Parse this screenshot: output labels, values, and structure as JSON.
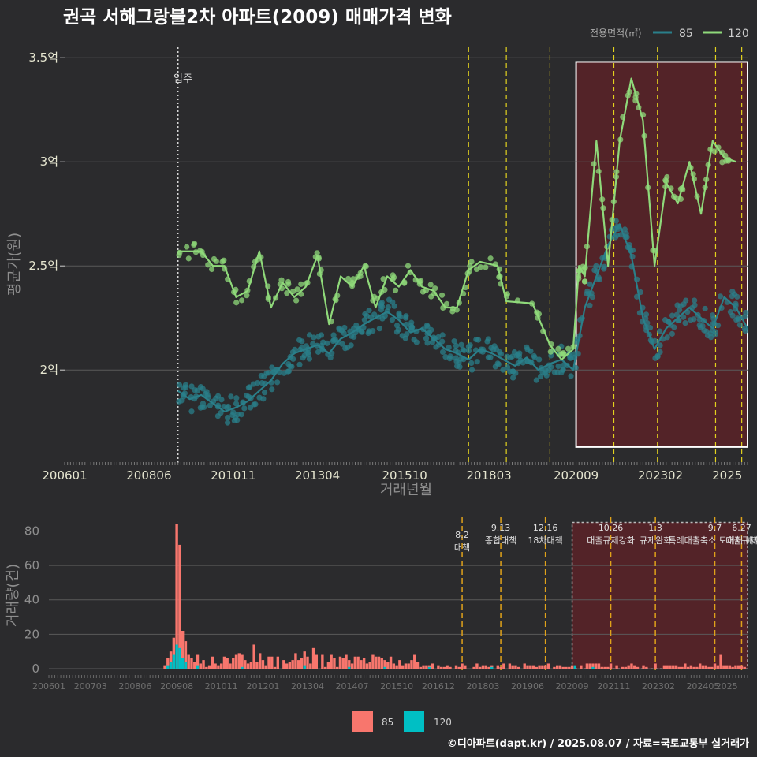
{
  "title": "권곡 서해그랑블2차 아파트(2009) 매매가격 변화",
  "footer": "©디아파트(dapt.kr) / 2025.08.07 / 자료=국토교통부 실거래가",
  "legend_top": {
    "title": "전용면적(㎡)",
    "items": [
      {
        "name": "85",
        "color": "#2a7f8a"
      },
      {
        "name": "120",
        "color": "#8fd97a"
      }
    ]
  },
  "legend_bottom": {
    "items": [
      {
        "name": "85",
        "color": "#f8766d"
      },
      {
        "name": "120",
        "color": "#00bfc4"
      }
    ]
  },
  "colors": {
    "bg": "#2b2b2d",
    "grid": "#5a5a5a",
    "vline": "#e3d21e",
    "vline2": "#e0a21a",
    "highlight": "#5a2228",
    "box": "#ffffff"
  },
  "chart_data": [
    {
      "type": "line",
      "title": "권곡 서해그랑블2차 아파트(2009) 매매가격 변화",
      "xlabel": "거래년월",
      "ylabel": "평균가(원)",
      "x_ticks": [
        "200601",
        "200806",
        "201011",
        "201304",
        "201510",
        "201803",
        "202009",
        "202302",
        "2025"
      ],
      "y_ticks": [
        {
          "label": "2억",
          "value": 2.0
        },
        {
          "label": "2.5억",
          "value": 2.5
        },
        {
          "label": "3억",
          "value": 3.0
        },
        {
          "label": "3.5억",
          "value": 3.5
        }
      ],
      "ylim": [
        1.55,
        3.55
      ],
      "xlim": [
        "2006-01",
        "2025-08"
      ],
      "grid": true,
      "legend": "top-right",
      "annotation": {
        "label": "입주",
        "x": "2009-04"
      },
      "policy_lines": [
        "2017-08",
        "2018-09",
        "2019-12",
        "2021-10",
        "2023-01",
        "2024-09",
        "2025-06"
      ],
      "highlight_range": [
        "2020-09",
        "2025-08"
      ],
      "series": [
        {
          "name": "85",
          "points": [
            [
              "2009-04",
              1.9
            ],
            [
              "2009-08",
              1.86
            ],
            [
              "2009-12",
              1.88
            ],
            [
              "2010-04",
              1.84
            ],
            [
              "2010-08",
              1.8
            ],
            [
              "2010-12",
              1.82
            ],
            [
              "2011-04",
              1.85
            ],
            [
              "2011-08",
              1.9
            ],
            [
              "2011-12",
              1.95
            ],
            [
              "2012-04",
              2.03
            ],
            [
              "2012-08",
              2.08
            ],
            [
              "2012-12",
              2.1
            ],
            [
              "2013-04",
              2.12
            ],
            [
              "2013-08",
              2.08
            ],
            [
              "2013-12",
              2.15
            ],
            [
              "2014-04",
              2.18
            ],
            [
              "2014-08",
              2.22
            ],
            [
              "2014-12",
              2.25
            ],
            [
              "2015-04",
              2.28
            ],
            [
              "2015-08",
              2.24
            ],
            [
              "2015-12",
              2.18
            ],
            [
              "2016-04",
              2.2
            ],
            [
              "2016-08",
              2.15
            ],
            [
              "2016-12",
              2.1
            ],
            [
              "2017-04",
              2.08
            ],
            [
              "2017-08",
              2.05
            ],
            [
              "2017-12",
              2.1
            ],
            [
              "2018-04",
              2.08
            ],
            [
              "2018-08",
              2.05
            ],
            [
              "2018-12",
              2.02
            ],
            [
              "2019-04",
              2.06
            ],
            [
              "2019-08",
              2.0
            ],
            [
              "2019-12",
              2.03
            ],
            [
              "2020-04",
              2.05
            ],
            [
              "2020-08",
              2.0
            ],
            [
              "2020-12",
              2.3
            ],
            [
              "2021-04",
              2.45
            ],
            [
              "2021-08",
              2.6
            ],
            [
              "2021-12",
              2.7
            ],
            [
              "2022-04",
              2.55
            ],
            [
              "2022-08",
              2.25
            ],
            [
              "2022-12",
              2.1
            ],
            [
              "2023-04",
              2.2
            ],
            [
              "2023-08",
              2.25
            ],
            [
              "2023-12",
              2.3
            ],
            [
              "2024-04",
              2.25
            ],
            [
              "2024-08",
              2.2
            ],
            [
              "2024-12",
              2.35
            ],
            [
              "2025-04",
              2.3
            ],
            [
              "2025-08",
              2.2
            ]
          ]
        },
        {
          "name": "120",
          "points": [
            [
              "2009-04",
              2.57
            ],
            [
              "2009-08",
              2.57
            ],
            [
              "2009-12",
              2.57
            ],
            [
              "2010-04",
              2.5
            ],
            [
              "2010-08",
              2.5
            ],
            [
              "2010-12",
              2.35
            ],
            [
              "2011-04",
              2.38
            ],
            [
              "2011-08",
              2.57
            ],
            [
              "2011-12",
              2.3
            ],
            [
              "2012-04",
              2.42
            ],
            [
              "2012-08",
              2.35
            ],
            [
              "2012-12",
              2.4
            ],
            [
              "2013-04",
              2.55
            ],
            [
              "2013-08",
              2.22
            ],
            [
              "2013-12",
              2.45
            ],
            [
              "2014-04",
              2.4
            ],
            [
              "2014-08",
              2.5
            ],
            [
              "2014-12",
              2.3
            ],
            [
              "2015-04",
              2.45
            ],
            [
              "2015-08",
              2.4
            ],
            [
              "2015-12",
              2.48
            ],
            [
              "2016-04",
              2.4
            ],
            [
              "2016-08",
              2.38
            ],
            [
              "2016-12",
              2.3
            ],
            [
              "2017-04",
              2.3
            ],
            [
              "2017-08",
              2.48
            ],
            [
              "2017-12",
              2.52
            ],
            [
              "2018-06",
              2.5
            ],
            [
              "2018-09",
              2.33
            ],
            [
              "2019-06",
              2.32
            ],
            [
              "2019-12",
              2.12
            ],
            [
              "2020-04",
              2.05
            ],
            [
              "2020-08",
              2.1
            ],
            [
              "2020-10",
              2.5
            ],
            [
              "2020-12",
              2.45
            ],
            [
              "2021-04",
              3.1
            ],
            [
              "2021-08",
              2.5
            ],
            [
              "2021-12",
              3.1
            ],
            [
              "2022-04",
              3.4
            ],
            [
              "2022-08",
              3.2
            ],
            [
              "2022-12",
              2.5
            ],
            [
              "2023-04",
              2.9
            ],
            [
              "2023-08",
              2.8
            ],
            [
              "2023-12",
              3.0
            ],
            [
              "2024-04",
              2.75
            ],
            [
              "2024-08",
              3.1
            ],
            [
              "2024-12",
              3.02
            ],
            [
              "2025-04",
              3.0
            ]
          ]
        }
      ]
    },
    {
      "type": "bar",
      "ylabel": "거래량(건)",
      "x_ticks": [
        "200601",
        "200703",
        "200806",
        "200908",
        "201011",
        "201201",
        "201304",
        "201407",
        "201510",
        "201612",
        "201803",
        "201906",
        "202009",
        "202111",
        "202302",
        "202405",
        "2025"
      ],
      "y_ticks": [
        0,
        20,
        40,
        60,
        80
      ],
      "ylim": [
        0,
        88
      ],
      "grid": true,
      "legend": "bottom",
      "stacked": true,
      "policy_annotations": [
        {
          "date": "2017-08",
          "label": "8.2 대책"
        },
        {
          "date": "2018-09",
          "label": "9.13 종합대책"
        },
        {
          "date": "2019-12",
          "label": "12.16 18차대책"
        },
        {
          "date": "2021-10",
          "label": "10.26 대출규제강화"
        },
        {
          "date": "2023-01",
          "label": "1.3 규제완화"
        },
        {
          "date": "2024-09",
          "label": "9.7 특례대출축소 토허제 해제"
        },
        {
          "date": "2025-06",
          "label": "6.27 대출규제"
        }
      ],
      "series": [
        {
          "name": "85",
          "values_by_month": [
            [
              "2009-04",
              2
            ],
            [
              "2009-05",
              6
            ],
            [
              "2009-06",
              10
            ],
            [
              "2009-07",
              18
            ],
            [
              "2009-08",
              84
            ],
            [
              "2009-09",
              72
            ],
            [
              "2009-10",
              22
            ],
            [
              "2009-11",
              16
            ],
            [
              "2009-12",
              8
            ],
            [
              "2010-02",
              4
            ],
            [
              "2010-05",
              5
            ],
            [
              "2010-09",
              3
            ],
            [
              "2011-01",
              6
            ],
            [
              "2011-06",
              8
            ],
            [
              "2011-10",
              14
            ],
            [
              "2011-12",
              9
            ],
            [
              "2012-04",
              7
            ],
            [
              "2012-08",
              5
            ],
            [
              "2012-12",
              9
            ],
            [
              "2013-03",
              10
            ],
            [
              "2013-06",
              12
            ],
            [
              "2013-09",
              8
            ],
            [
              "2014-01",
              6
            ],
            [
              "2014-06",
              5
            ],
            [
              "2015-01",
              4
            ],
            [
              "2015-06",
              5
            ],
            [
              "2016-01",
              3
            ],
            [
              "2016-09",
              2
            ],
            [
              "2017-06",
              2
            ],
            [
              "2018-06",
              2
            ],
            [
              "2019-03",
              1
            ],
            [
              "2020-12",
              2
            ],
            [
              "2021-05",
              3
            ],
            [
              "2022-03",
              1
            ],
            [
              "2023-05",
              2
            ],
            [
              "2024-06",
              2
            ],
            [
              "2024-11",
              8
            ],
            [
              "2025-05",
              2
            ]
          ]
        },
        {
          "name": "120",
          "values_by_month": [
            [
              "2009-05",
              2
            ],
            [
              "2009-06",
              4
            ],
            [
              "2009-07",
              8
            ],
            [
              "2009-08",
              14
            ],
            [
              "2009-09",
              12
            ],
            [
              "2009-10",
              6
            ],
            [
              "2009-11",
              4
            ],
            [
              "2010-03",
              2
            ],
            [
              "2011-06",
              1
            ],
            [
              "2013-03",
              2
            ],
            [
              "2014-06",
              1
            ],
            [
              "2015-06",
              1
            ],
            [
              "2016-09",
              1
            ],
            [
              "2018-06",
              1
            ],
            [
              "2020-10",
              2
            ],
            [
              "2021-04",
              1
            ]
          ]
        }
      ]
    }
  ]
}
